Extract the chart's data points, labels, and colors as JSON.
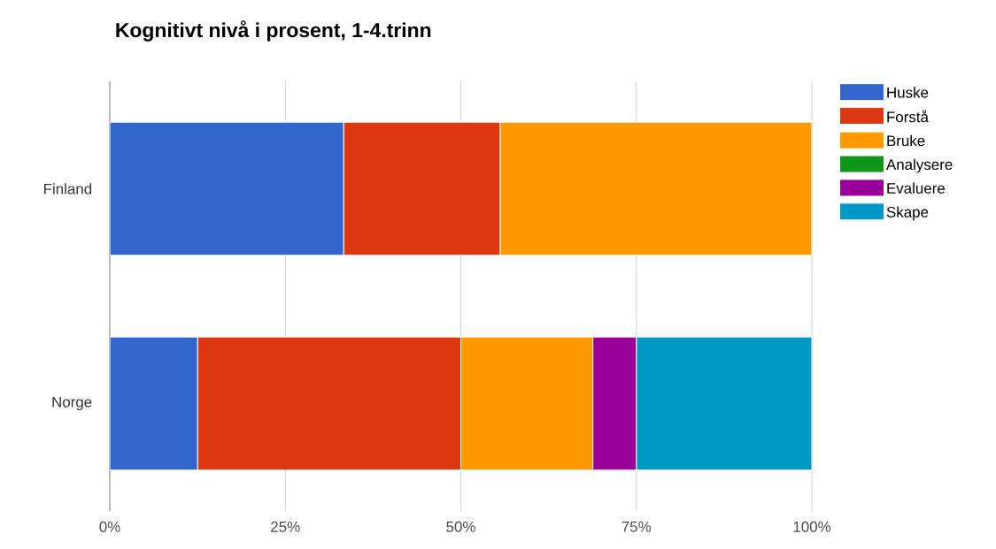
{
  "chart_data": {
    "type": "bar",
    "orientation": "horizontal",
    "stacked": true,
    "title": "Kognitivt nivå i prosent, 1-4.trinn",
    "categories": [
      "Finland",
      "Norge"
    ],
    "series": [
      {
        "name": "Huske",
        "color": "#3366cc",
        "values": [
          33.3,
          12.5
        ]
      },
      {
        "name": "Forstå",
        "color": "#dc3912",
        "values": [
          22.3,
          37.5
        ]
      },
      {
        "name": "Bruke",
        "color": "#ff9900",
        "values": [
          44.4,
          18.8
        ]
      },
      {
        "name": "Analysere",
        "color": "#109618",
        "values": [
          0,
          0
        ]
      },
      {
        "name": "Evaluere",
        "color": "#990099",
        "values": [
          0,
          6.2
        ]
      },
      {
        "name": "Skape",
        "color": "#0099c6",
        "values": [
          0,
          25
        ]
      }
    ],
    "xlim": [
      0,
      100
    ],
    "xticks": [
      {
        "value": 0,
        "label": "0%"
      },
      {
        "value": 25,
        "label": "25%"
      },
      {
        "value": 50,
        "label": "50%"
      },
      {
        "value": 75,
        "label": "75%"
      },
      {
        "value": 100,
        "label": "100%"
      }
    ],
    "grid": "x",
    "legend": "right"
  }
}
